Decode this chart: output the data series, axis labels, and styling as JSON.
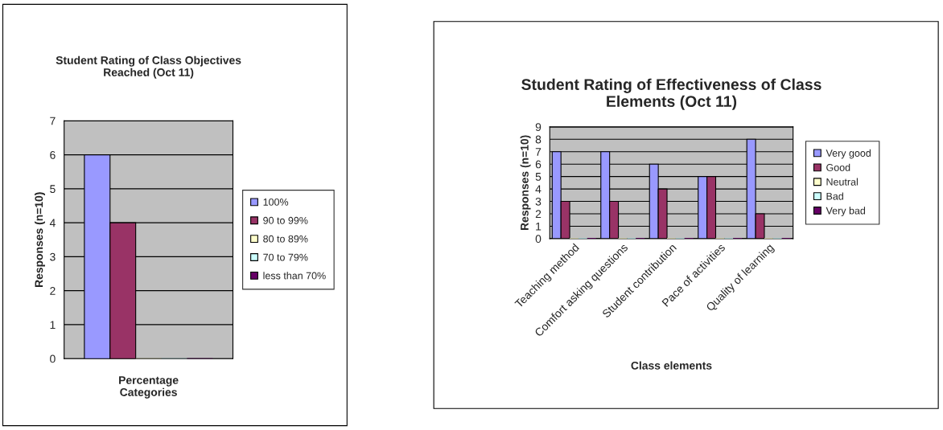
{
  "chart_data": [
    {
      "type": "bar",
      "title": "Student Rating of Class Objectives\nReached (Oct 11)",
      "xlabel": "Percentage\nCategories",
      "ylabel": "Responses (n=10)",
      "categories": [
        null
      ],
      "ylim": [
        0,
        7
      ],
      "yticks": [
        0,
        1,
        2,
        3,
        4,
        5,
        6,
        7
      ],
      "grid": "y",
      "legend": "right",
      "series": [
        {
          "name": "100%",
          "color": "#9999ff",
          "values": [
            6
          ]
        },
        {
          "name": "90 to 99%",
          "color": "#993366",
          "values": [
            4
          ]
        },
        {
          "name": "80 to 89%",
          "color": "#ffffcc",
          "values": [
            0
          ]
        },
        {
          "name": "70 to 79%",
          "color": "#ccffff",
          "values": [
            0
          ]
        },
        {
          "name": "less than 70%",
          "color": "#660066",
          "values": [
            0
          ]
        }
      ]
    },
    {
      "type": "bar",
      "title": "Student Rating of Effectiveness of Class\nElements (Oct 11)",
      "xlabel": "Class elements",
      "ylabel": "Responses (n=10)",
      "categories": [
        "Teaching method",
        "Comfort asking questions",
        "Student contribution",
        "Pace of activities",
        "Quality of learning"
      ],
      "ylim": [
        0,
        9
      ],
      "yticks": [
        0,
        1,
        2,
        3,
        4,
        5,
        6,
        7,
        8,
        9
      ],
      "grid": "y",
      "legend": "right",
      "series": [
        {
          "name": "Very good",
          "color": "#9999ff",
          "values": [
            7,
            7,
            6,
            5,
            8
          ]
        },
        {
          "name": "Good",
          "color": "#993366",
          "values": [
            3,
            3,
            4,
            5,
            2
          ]
        },
        {
          "name": "Neutral",
          "color": "#ffffcc",
          "values": [
            0,
            0,
            0,
            0,
            0
          ]
        },
        {
          "name": "Bad",
          "color": "#ccffff",
          "values": [
            0,
            0,
            0,
            0,
            0
          ]
        },
        {
          "name": "Very bad",
          "color": "#660066",
          "values": [
            0,
            0,
            0,
            0,
            0
          ]
        }
      ]
    }
  ]
}
